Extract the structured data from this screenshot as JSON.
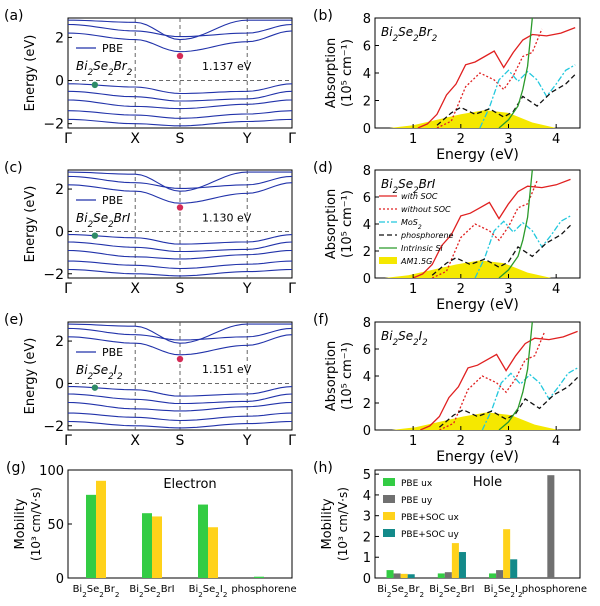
{
  "colors": {
    "band": "#2233aa",
    "cbm": "#d42a55",
    "vbm": "#2e8b66",
    "soc": "#e02020",
    "nosoc": "#e02020",
    "mos2": "#22c8dd",
    "phos": "#111111",
    "si": "#2a9a2a",
    "am15": "#f5e800",
    "pbe_ux": "#33cc44",
    "pbe_uy": "#707070",
    "soc_ux": "#ffd21a",
    "soc_uy": "#138a8a"
  },
  "band_panels": [
    {
      "letter": "(a)",
      "legend": "PBE",
      "compound": "Bi2Se2Br2",
      "gap_label": "1.137 eV",
      "gap_ev": 1.137
    },
    {
      "letter": "(c)",
      "legend": "PBE",
      "compound": "Bi2Se2BrI",
      "gap_label": "1.130 eV",
      "gap_ev": 1.13
    },
    {
      "letter": "(e)",
      "legend": "PBE",
      "compound": "Bi2Se2I2",
      "gap_label": "1.151 eV",
      "gap_ev": 1.151
    }
  ],
  "band_axis": {
    "ylabel": "Energy (eV)",
    "kpoints": [
      "Γ",
      "X",
      "S",
      "Y",
      "Γ"
    ],
    "yticks": [
      "−2",
      "0",
      "2"
    ],
    "ylim": [
      -2.2,
      2.9
    ]
  },
  "abs_panels": [
    {
      "letter": "(b)",
      "compound": "Bi2Se2Br2"
    },
    {
      "letter": "(d)",
      "compound": "Bi2Se2BrI",
      "legend": [
        "with SOC",
        "without SOC",
        "MoS2",
        "phosphorene",
        "Intrinsic Si",
        "AM1.5G"
      ]
    },
    {
      "letter": "(f)",
      "compound": "Bi2Se2I2"
    }
  ],
  "abs_axis": {
    "xlabel": "Energy (eV)",
    "ylabel_main": "Absorption",
    "ylabel_unit": "(10⁵ cm⁻¹)",
    "xticks": [
      "1",
      "2",
      "3",
      "4"
    ],
    "yticks": [
      "0",
      "2",
      "4",
      "6",
      "8"
    ],
    "xlim": [
      0.2,
      4.5
    ],
    "ylim": [
      0,
      8
    ]
  },
  "mobility_electron": {
    "letter": "(g)",
    "title": "Electron",
    "ylabel": "Mobility",
    "ylabel_unit": "(10³ cm/V·s)",
    "yticks": [
      "0",
      "50",
      "100"
    ],
    "ylim": [
      0,
      100
    ],
    "categories": [
      "Bi2Se2Br2",
      "Bi2Se2BrI",
      "Bi2Se2I2",
      "phosphorene"
    ],
    "series": [
      {
        "name": "PBE ux",
        "values": [
          77,
          60,
          68,
          1.2
        ]
      },
      {
        "name": "PBE+SOC ux",
        "values": [
          90,
          57,
          47,
          0
        ]
      }
    ]
  },
  "mobility_hole": {
    "letter": "(h)",
    "title": "Hole",
    "ylabel": "Mobility",
    "ylabel_unit": "(10³ cm/V·s)",
    "yticks": [
      "0",
      "1",
      "2",
      "3",
      "4",
      "5"
    ],
    "ylim": [
      0,
      5.2
    ],
    "categories": [
      "Bi2Se2Br2",
      "Bi2Se2BrI",
      "Bi2Se2I2",
      "phosphorene"
    ],
    "legend": [
      "PBE ux",
      "PBE uy",
      "PBE+SOC ux",
      "PBE+SOC uy"
    ],
    "series": [
      {
        "name": "PBE ux",
        "values": [
          0.38,
          0.22,
          0.22,
          0
        ]
      },
      {
        "name": "PBE uy",
        "values": [
          0.22,
          0.28,
          0.38,
          4.95
        ]
      },
      {
        "name": "PBE+SOC ux",
        "values": [
          0.2,
          1.68,
          2.35,
          0
        ]
      },
      {
        "name": "PBE+SOC uy",
        "values": [
          0.18,
          1.25,
          0.9,
          0
        ]
      }
    ]
  },
  "chart_data": [
    {
      "type": "line",
      "title": "",
      "xlabel": "",
      "ylabel": "Energy (eV)",
      "compound": "Bi2Se2Br2",
      "band_gap_eV": 1.137,
      "x": [
        "Γ",
        "X",
        "S",
        "Y",
        "Γ"
      ],
      "ylim": [
        -2.2,
        2.9
      ]
    },
    {
      "type": "line",
      "title": "",
      "xlabel": "",
      "ylabel": "Energy (eV)",
      "compound": "Bi2Se2BrI",
      "band_gap_eV": 1.13,
      "x": [
        "Γ",
        "X",
        "S",
        "Y",
        "Γ"
      ],
      "ylim": [
        -2.2,
        2.9
      ]
    },
    {
      "type": "line",
      "title": "",
      "xlabel": "",
      "ylabel": "Energy (eV)",
      "compound": "Bi2Se2I2",
      "band_gap_eV": 1.151,
      "x": [
        "Γ",
        "X",
        "S",
        "Y",
        "Γ"
      ],
      "ylim": [
        -2.2,
        2.9
      ]
    },
    {
      "type": "line",
      "xlabel": "Energy (eV)",
      "ylabel": "Absorption (10^5 cm^-1)",
      "xlim": [
        0.2,
        4.5
      ],
      "ylim": [
        0,
        8
      ],
      "series": [
        {
          "name": "with SOC",
          "x": [
            1.1,
            1.3,
            1.5,
            1.7,
            1.9,
            2.1,
            2.3,
            2.5,
            2.7,
            2.9,
            3.1,
            3.3,
            3.5,
            3.8,
            4.1,
            4.4
          ],
          "y": [
            0,
            0.3,
            1.0,
            2.4,
            3.2,
            4.6,
            4.8,
            5.2,
            5.6,
            4.4,
            5.5,
            6.4,
            6.8,
            6.7,
            6.9,
            7.3
          ]
        },
        {
          "name": "without SOC",
          "x": [
            1.5,
            1.8,
            2.1,
            2.4,
            2.7,
            2.9,
            3.1,
            3.3,
            3.5,
            3.7
          ],
          "y": [
            0,
            0.5,
            3.0,
            4.0,
            3.5,
            2.8,
            3.8,
            5.2,
            5.5,
            7.2
          ]
        },
        {
          "name": "MoS2",
          "x": [
            2.4,
            2.6,
            2.8,
            3.0,
            3.2,
            3.4,
            3.6,
            3.8,
            4.0,
            4.2,
            4.4
          ],
          "y": [
            0,
            1.5,
            3.5,
            4.2,
            3.4,
            4.1,
            3.5,
            2.3,
            3.2,
            4.2,
            4.6
          ]
        },
        {
          "name": "phosphorene",
          "x": [
            1.5,
            1.8,
            2.0,
            2.3,
            2.6,
            2.9,
            3.1,
            3.3,
            3.6,
            3.9,
            4.2,
            4.4
          ],
          "y": [
            0.2,
            1.1,
            1.5,
            1.0,
            1.4,
            0.8,
            1.2,
            2.3,
            1.6,
            2.6,
            3.2,
            3.9
          ]
        },
        {
          "name": "Intrinsic Si",
          "x": [
            2.8,
            3.0,
            3.2,
            3.3,
            3.4,
            3.45,
            3.5
          ],
          "y": [
            0,
            0.6,
            1.6,
            2.8,
            4.5,
            6.2,
            8
          ]
        },
        {
          "name": "AM1.5G",
          "x": [
            0.5,
            1.0,
            1.5,
            2.0,
            2.5,
            3.0,
            3.5,
            4.0
          ],
          "y": [
            0,
            0.2,
            0.6,
            1.0,
            1.3,
            1.1,
            0.4,
            0
          ]
        }
      ]
    },
    {
      "type": "bar",
      "title": "Electron",
      "ylabel": "Mobility (10^3 cm/V·s)",
      "categories": [
        "Bi2Se2Br2",
        "Bi2Se2BrI",
        "Bi2Se2I2",
        "phosphorene"
      ],
      "ylim": [
        0,
        100
      ],
      "series": [
        {
          "name": "PBE ux",
          "values": [
            77,
            60,
            68,
            1.2
          ]
        },
        {
          "name": "PBE+SOC ux",
          "values": [
            90,
            57,
            47,
            0
          ]
        }
      ]
    },
    {
      "type": "bar",
      "title": "Hole",
      "ylabel": "Mobility (10^3 cm/V·s)",
      "categories": [
        "Bi2Se2Br2",
        "Bi2Se2BrI",
        "Bi2Se2I2",
        "phosphorene"
      ],
      "ylim": [
        0,
        5.2
      ],
      "series": [
        {
          "name": "PBE ux",
          "values": [
            0.38,
            0.22,
            0.22,
            0
          ]
        },
        {
          "name": "PBE uy",
          "values": [
            0.22,
            0.28,
            0.38,
            4.95
          ]
        },
        {
          "name": "PBE+SOC ux",
          "values": [
            0.2,
            1.68,
            2.35,
            0
          ]
        },
        {
          "name": "PBE+SOC uy",
          "values": [
            0.18,
            1.25,
            0.9,
            0
          ]
        }
      ]
    }
  ]
}
